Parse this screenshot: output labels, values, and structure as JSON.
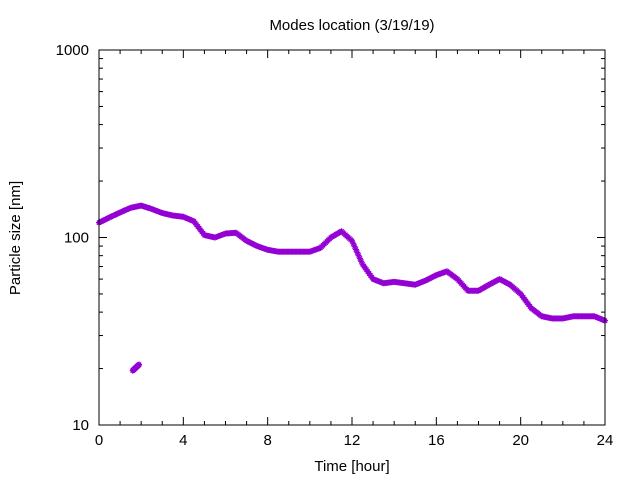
{
  "chart_data": {
    "type": "scatter",
    "title": "Modes location (3/19/19)",
    "xlabel": "Time [hour]",
    "ylabel": "Particle size [nm]",
    "xlim": [
      0,
      24
    ],
    "ylim": [
      10,
      1000
    ],
    "y_scale": "log",
    "x_ticks": [
      0,
      4,
      8,
      12,
      16,
      20,
      24
    ],
    "x_tick_labels": [
      "0",
      "4",
      "8",
      "12",
      "16",
      "20",
      "24"
    ],
    "y_ticks": [
      10,
      100,
      1000
    ],
    "y_tick_labels": [
      "10",
      "100",
      "1000"
    ],
    "grid": false,
    "marker_color": "#9400d3",
    "series": [
      {
        "x": [
          0,
          0.5,
          1,
          1.5,
          2,
          2.5,
          3,
          3.5,
          4,
          4.5,
          5,
          5.5,
          6,
          6.5,
          7,
          7.5,
          8,
          8.5,
          9,
          9.5,
          10,
          10.5,
          11,
          11.5,
          12,
          12.5,
          13,
          13.5,
          14,
          14.5,
          15,
          15.5,
          16,
          16.5,
          17,
          17.5,
          18,
          18.5,
          19,
          19.5,
          20,
          20.5,
          21,
          21.5,
          22,
          22.5,
          23,
          23.5,
          24
        ],
        "y": [
          120,
          128,
          136,
          144,
          148,
          142,
          135,
          131,
          129,
          122,
          103,
          100,
          105,
          106,
          96,
          90,
          86,
          84,
          84,
          84,
          84,
          88,
          100,
          108,
          96,
          72,
          60,
          57,
          58,
          57,
          56,
          59,
          63,
          66,
          60,
          52,
          52,
          56,
          60,
          56,
          50,
          42,
          38,
          37,
          37,
          38,
          38,
          38,
          36
        ]
      },
      {
        "x": [
          1.6,
          1.7,
          1.8,
          1.9
        ],
        "y": [
          19.5,
          20,
          20.5,
          21
        ]
      }
    ]
  }
}
